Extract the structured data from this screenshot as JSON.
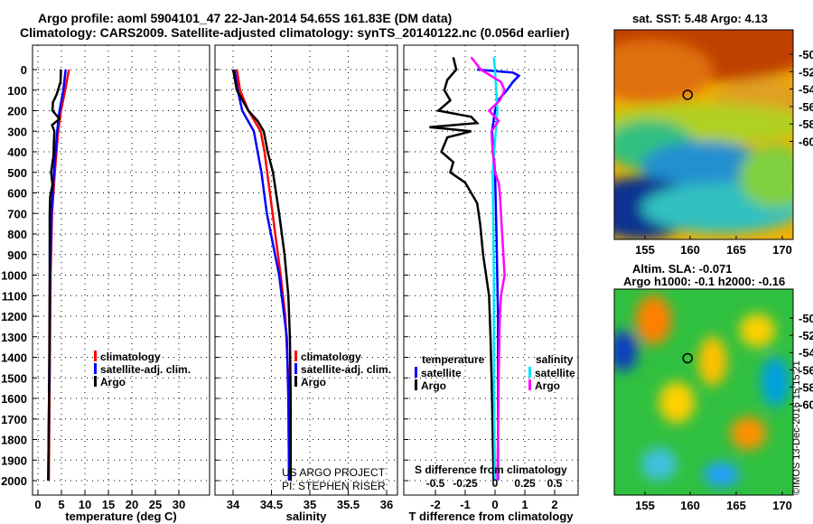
{
  "title_line1": "Argo profile: aoml 5904101_47 22-Jan-2014 54.65S 161.83E (DM data)",
  "title_line2": "Climatology: CARS2009. Satellite-adjusted climatology: synTS_20140122.nc (0.056d earlier)",
  "credit_line1": "US ARGO PROJECT",
  "credit_line2": "PI: STEPHEN RISER",
  "watermark": "©IMOS 13-Dec-2016 15:15:21",
  "colors": {
    "climatology": "#ff0000",
    "satellite": "#0000ff",
    "argo": "#000000",
    "sal_satellite": "#00e5ff",
    "sal_argo": "#ff00ff"
  },
  "chart_data": [
    {
      "type": "line",
      "xlabel": "temperature (deg C)",
      "ylabel": "depth",
      "xlim": [
        -1.2,
        36
      ],
      "ylim": [
        2060,
        -120
      ],
      "xticks": [
        0,
        5,
        10,
        15,
        20,
        25,
        30
      ],
      "yticks": [
        0,
        100,
        200,
        300,
        400,
        500,
        600,
        700,
        800,
        900,
        1000,
        1100,
        1200,
        1300,
        1400,
        1500,
        1600,
        1700,
        1800,
        1900,
        2000
      ],
      "legend": [
        "climatology",
        "satellite-adj. clim.",
        "Argo"
      ],
      "series": [
        {
          "name": "climatology",
          "color": "#ff0000",
          "depth": [
            0,
            100,
            200,
            300,
            500,
            700,
            1000,
            1500,
            2000
          ],
          "values": [
            6.6,
            5.8,
            4.9,
            4.3,
            3.6,
            3.0,
            2.7,
            2.5,
            2.3
          ]
        },
        {
          "name": "satellite-adj. clim.",
          "color": "#0000ff",
          "depth": [
            0,
            100,
            200,
            300,
            500,
            700,
            1000,
            1500,
            2000
          ],
          "values": [
            5.9,
            5.4,
            4.6,
            4.1,
            3.4,
            2.9,
            2.6,
            2.4,
            2.2
          ]
        },
        {
          "name": "Argo",
          "color": "#000000",
          "depth": [
            0,
            60,
            120,
            160,
            200,
            240,
            270,
            300,
            350,
            420,
            500,
            560,
            620,
            700,
            1000,
            1500,
            2000
          ],
          "values": [
            4.9,
            4.8,
            4.0,
            3.2,
            3.1,
            4.6,
            3.0,
            3.5,
            3.4,
            3.3,
            2.8,
            3.1,
            2.6,
            2.5,
            2.5,
            2.4,
            2.2
          ]
        }
      ]
    },
    {
      "type": "line",
      "xlabel": "salinity",
      "xlim": [
        33.8,
        36.1
      ],
      "ylim": [
        2060,
        -120
      ],
      "xticks": [
        "34",
        "34.5",
        "35",
        "35.5",
        "36"
      ],
      "legend": [
        "climatology",
        "satellite-adj. clim.",
        "Argo"
      ],
      "series": [
        {
          "name": "climatology",
          "color": "#ff0000",
          "depth": [
            0,
            100,
            200,
            300,
            400,
            600,
            800,
            1000,
            1200,
            1500,
            2000
          ],
          "values": [
            34.05,
            34.09,
            34.2,
            34.36,
            34.41,
            34.48,
            34.55,
            34.62,
            34.68,
            34.72,
            34.73
          ]
        },
        {
          "name": "satellite-adj. clim.",
          "color": "#0000ff",
          "depth": [
            0,
            100,
            200,
            300,
            500,
            700,
            1000,
            1300,
            1600,
            2000
          ],
          "values": [
            34.02,
            34.06,
            34.12,
            34.27,
            34.37,
            34.44,
            34.6,
            34.7,
            34.72,
            34.73
          ]
        },
        {
          "name": "Argo",
          "color": "#000000",
          "depth": [
            0,
            100,
            200,
            250,
            300,
            400,
            500,
            700,
            900,
            1100,
            1300,
            1600,
            2000
          ],
          "values": [
            34.0,
            34.05,
            34.2,
            34.32,
            34.4,
            34.45,
            34.52,
            34.6,
            34.67,
            34.72,
            34.74,
            34.75,
            34.75
          ]
        }
      ]
    },
    {
      "type": "line",
      "xlabel": "T difference from climatology",
      "xlim": [
        -2.9,
        2.9
      ],
      "ylim": [
        2060,
        -120
      ],
      "xticks": [
        "-2",
        "-1",
        "0",
        "1",
        "2"
      ],
      "s_axis_label": "S difference from climatology",
      "s_xticks": [
        "-0.5",
        "-0.25",
        "0",
        "0.25",
        "0.5"
      ],
      "legend": {
        "temperature_title": "temperature",
        "salinity_title": "salinity",
        "satellite": "satellite",
        "argo": "Argo"
      },
      "series": [
        {
          "name": "temperature satellite",
          "color": "#0000ff",
          "unit": "T",
          "depth": [
            0,
            15,
            30,
            60,
            100,
            150,
            200,
            300,
            500,
            800,
            1200,
            2000
          ],
          "values": [
            -0.6,
            0.6,
            0.8,
            0.6,
            0.4,
            0.1,
            0.0,
            -0.1,
            0.0,
            0.05,
            0.1,
            0.1
          ]
        },
        {
          "name": "temperature Argo",
          "color": "#000000",
          "unit": "T",
          "depth": [
            -60,
            0,
            50,
            100,
            150,
            200,
            230,
            260,
            280,
            300,
            330,
            400,
            450,
            500,
            550,
            650,
            750,
            900,
            1100,
            1300,
            1600,
            2000
          ],
          "values": [
            -1.4,
            -1.3,
            -1.6,
            -1.7,
            -1.5,
            -1.9,
            -0.8,
            -0.6,
            -2.2,
            -0.8,
            -1.6,
            -1.8,
            -1.4,
            -1.5,
            -1.0,
            -0.6,
            -0.5,
            -0.4,
            -0.2,
            -0.15,
            -0.1,
            -0.05
          ]
        },
        {
          "name": "salinity satellite",
          "color": "#00e5ff",
          "unit": "S",
          "depth": [
            -60,
            0,
            200,
            500,
            1000,
            1500,
            2000
          ],
          "values": [
            -0.01,
            0.0,
            0.02,
            -0.02,
            -0.01,
            -0.01,
            0.0
          ]
        },
        {
          "name": "salinity Argo",
          "color": "#ff00ff",
          "unit": "S",
          "depth": [
            -60,
            0,
            60,
            100,
            150,
            200,
            250,
            300,
            400,
            500,
            550,
            600,
            700,
            800,
            1000,
            1100,
            1200,
            1500,
            2000
          ],
          "values": [
            -0.2,
            -0.12,
            0.05,
            0.08,
            0.04,
            -0.05,
            0.03,
            -0.03,
            -0.02,
            0.0,
            0.03,
            0.04,
            0.05,
            0.06,
            0.08,
            0.05,
            0.04,
            0.03,
            0.02
          ]
        }
      ]
    }
  ],
  "map_sst": {
    "title": "sat. SST: 5.48 Argo: 4.13",
    "lat_ticks": [
      "-50",
      "-52",
      "-54",
      "-56",
      "-58",
      "-60"
    ],
    "lon_ticks": [
      "155",
      "160",
      "165",
      "170"
    ]
  },
  "map_sla": {
    "title1": "Altim. SLA: -0.071",
    "title2": "Argo h1000: -0.1 h2000: -0.16",
    "lat_ticks": [
      "-50",
      "-52",
      "-54",
      "-56",
      "-58",
      "-60"
    ],
    "lon_ticks": [
      "155",
      "160",
      "165",
      "170"
    ]
  }
}
